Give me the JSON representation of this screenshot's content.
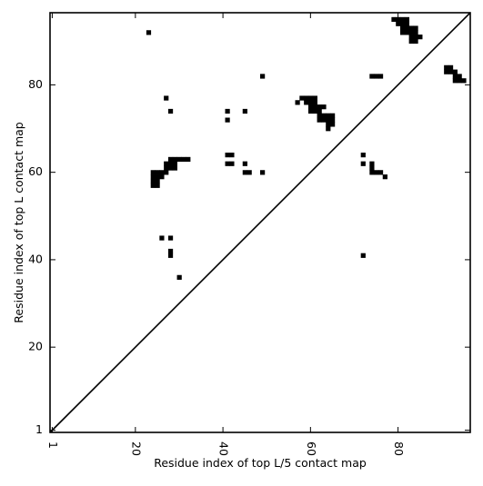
{
  "chart_data": {
    "type": "heatmap",
    "title": "",
    "xlabel": "Residue index of top L/5 contact map",
    "ylabel": "Residue index of top L contact map",
    "xlim": [
      1,
      96
    ],
    "ylim": [
      1,
      96
    ],
    "x_ticks": [
      1,
      20,
      40,
      60,
      80
    ],
    "y_ticks": [
      1,
      20,
      40,
      60,
      80
    ],
    "x_tick_labels": [
      "1",
      "20",
      "40",
      "60",
      "80"
    ],
    "y_tick_labels": [
      "1",
      "20",
      "40",
      "60",
      "80"
    ],
    "x_tick_rotation": -90,
    "grid": false,
    "diagonal": true,
    "cell_color": "#000000",
    "background": "#ffffff",
    "contacts": [
      [
        23,
        92
      ],
      [
        27,
        77
      ],
      [
        28,
        74
      ],
      [
        41,
        74
      ],
      [
        45,
        74
      ],
      [
        41,
        72
      ],
      [
        49,
        82
      ],
      [
        57,
        76
      ],
      [
        58,
        77
      ],
      [
        59,
        77
      ],
      [
        60,
        77
      ],
      [
        61,
        77
      ],
      [
        59,
        76
      ],
      [
        60,
        76
      ],
      [
        61,
        76
      ],
      [
        60,
        75
      ],
      [
        61,
        75
      ],
      [
        62,
        75
      ],
      [
        63,
        75
      ],
      [
        60,
        74
      ],
      [
        61,
        74
      ],
      [
        62,
        74
      ],
      [
        62,
        73
      ],
      [
        63,
        73
      ],
      [
        64,
        73
      ],
      [
        65,
        73
      ],
      [
        62,
        72
      ],
      [
        63,
        72
      ],
      [
        64,
        72
      ],
      [
        65,
        72
      ],
      [
        64,
        71
      ],
      [
        65,
        71
      ],
      [
        64,
        70
      ],
      [
        74,
        82
      ],
      [
        75,
        82
      ],
      [
        76,
        82
      ],
      [
        79,
        95
      ],
      [
        80,
        95
      ],
      [
        81,
        95
      ],
      [
        82,
        95
      ],
      [
        80,
        94
      ],
      [
        81,
        94
      ],
      [
        82,
        94
      ],
      [
        81,
        93
      ],
      [
        82,
        93
      ],
      [
        83,
        93
      ],
      [
        84,
        93
      ],
      [
        81,
        92
      ],
      [
        82,
        92
      ],
      [
        83,
        92
      ],
      [
        84,
        92
      ],
      [
        83,
        91
      ],
      [
        84,
        91
      ],
      [
        85,
        91
      ],
      [
        83,
        90
      ],
      [
        84,
        90
      ],
      [
        91,
        84
      ],
      [
        92,
        84
      ],
      [
        91,
        83
      ],
      [
        92,
        83
      ],
      [
        93,
        83
      ],
      [
        93,
        82
      ],
      [
        94,
        82
      ],
      [
        93,
        81
      ],
      [
        94,
        81
      ],
      [
        95,
        81
      ],
      [
        24,
        60
      ],
      [
        25,
        60
      ],
      [
        26,
        60
      ],
      [
        24,
        59
      ],
      [
        25,
        59
      ],
      [
        26,
        59
      ],
      [
        24,
        58
      ],
      [
        25,
        58
      ],
      [
        24,
        57
      ],
      [
        25,
        57
      ],
      [
        27,
        62
      ],
      [
        28,
        62
      ],
      [
        27,
        61
      ],
      [
        28,
        61
      ],
      [
        27,
        60
      ],
      [
        28,
        63
      ],
      [
        29,
        63
      ],
      [
        30,
        63
      ],
      [
        31,
        63
      ],
      [
        32,
        63
      ],
      [
        29,
        62
      ],
      [
        29,
        61
      ],
      [
        41,
        64
      ],
      [
        42,
        64
      ],
      [
        41,
        62
      ],
      [
        42,
        62
      ],
      [
        45,
        62
      ],
      [
        45,
        60
      ],
      [
        46,
        60
      ],
      [
        49,
        60
      ],
      [
        72,
        64
      ],
      [
        72,
        62
      ],
      [
        74,
        62
      ],
      [
        74,
        61
      ],
      [
        74,
        60
      ],
      [
        75,
        60
      ],
      [
        76,
        60
      ],
      [
        77,
        59
      ],
      [
        26,
        45
      ],
      [
        28,
        45
      ],
      [
        28,
        42
      ],
      [
        28,
        41
      ],
      [
        30,
        36
      ],
      [
        72,
        41
      ]
    ]
  }
}
